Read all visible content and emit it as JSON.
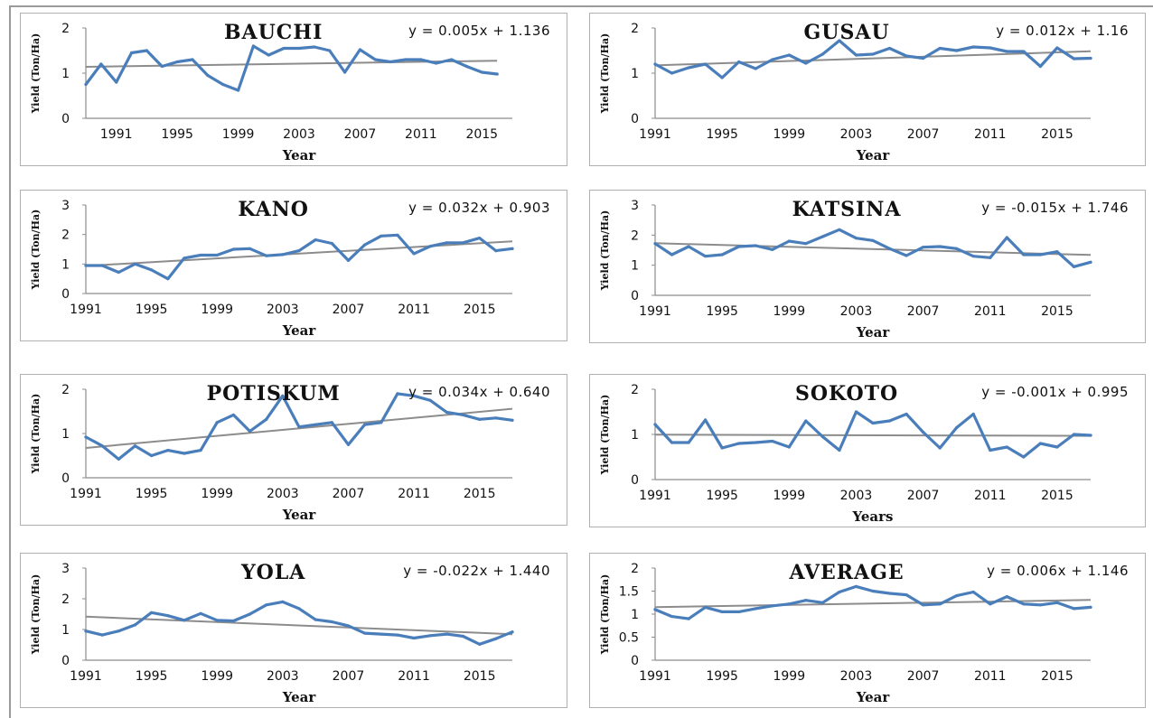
{
  "chart_data": [
    {
      "type": "line",
      "title": "BAUCHI",
      "equation": "y = 0.005x + 1.136",
      "xlabel": "Year",
      "ylabel": "Yield (Ton/Ha)",
      "x_tick_labels": [
        "1991",
        "1995",
        "1999",
        "2003",
        "2007",
        "2011",
        "2015"
      ],
      "y_ticks": [
        0,
        1,
        2
      ],
      "ylim": [
        0,
        2
      ],
      "x_start": 1989,
      "x_end": 2017,
      "series": [
        {
          "x": [
            1989,
            1990,
            1991,
            1992,
            1993,
            1994,
            1995,
            1996,
            1997,
            1998,
            1999,
            2000,
            2001,
            2002,
            2003,
            2004,
            2005,
            2006,
            2007,
            2008,
            2009,
            2010,
            2011,
            2012,
            2013,
            2014,
            2015,
            2016
          ],
          "values": [
            0.75,
            1.2,
            0.8,
            1.45,
            1.5,
            1.15,
            1.25,
            1.3,
            0.95,
            0.75,
            0.62,
            1.6,
            1.4,
            1.55,
            1.55,
            1.58,
            1.5,
            1.02,
            1.52,
            1.3,
            1.25,
            1.3,
            1.3,
            1.22,
            1.3,
            1.15,
            1.02,
            0.98
          ]
        }
      ],
      "trendline": {
        "slope": 0.005,
        "intercept": 1.136
      }
    },
    {
      "type": "line",
      "title": "GUSAU",
      "equation": "y = 0.012x + 1.16",
      "xlabel": "Year",
      "ylabel": "Yield (Ton/Ha)",
      "x_tick_labels": [
        "1991",
        "1995",
        "1999",
        "2003",
        "2007",
        "2011",
        "2015"
      ],
      "y_ticks": [
        0,
        1,
        2
      ],
      "ylim": [
        0,
        2
      ],
      "x_start": 1991,
      "x_end": 2017,
      "series": [
        {
          "x": [
            1991,
            1992,
            1993,
            1994,
            1995,
            1996,
            1997,
            1998,
            1999,
            2000,
            2001,
            2002,
            2003,
            2004,
            2005,
            2006,
            2007,
            2008,
            2009,
            2010,
            2011,
            2012,
            2013,
            2014,
            2015,
            2016,
            2017
          ],
          "values": [
            1.2,
            1.0,
            1.12,
            1.2,
            0.9,
            1.25,
            1.1,
            1.3,
            1.4,
            1.22,
            1.42,
            1.72,
            1.4,
            1.42,
            1.55,
            1.38,
            1.33,
            1.55,
            1.5,
            1.58,
            1.56,
            1.48,
            1.48,
            1.15,
            1.56,
            1.32,
            1.33
          ]
        }
      ],
      "trendline": {
        "slope": 0.012,
        "intercept": 1.16
      }
    },
    {
      "type": "line",
      "title": "KANO",
      "equation": "y = 0.032x + 0.903",
      "xlabel": "Year",
      "ylabel": "Yield (Ton/Ha)",
      "x_tick_labels": [
        "1991",
        "1995",
        "1999",
        "2003",
        "2007",
        "2011",
        "2015"
      ],
      "y_ticks": [
        0,
        1,
        2,
        3
      ],
      "ylim": [
        0,
        3
      ],
      "x_start": 1991,
      "x_end": 2017,
      "series": [
        {
          "x": [
            1991,
            1992,
            1993,
            1994,
            1995,
            1996,
            1997,
            1998,
            1999,
            2000,
            2001,
            2002,
            2003,
            2004,
            2005,
            2006,
            2007,
            2008,
            2009,
            2010,
            2011,
            2012,
            2013,
            2014,
            2015,
            2016,
            2017
          ],
          "values": [
            0.95,
            0.95,
            0.72,
            1.0,
            0.8,
            0.5,
            1.2,
            1.3,
            1.3,
            1.5,
            1.52,
            1.28,
            1.32,
            1.45,
            1.82,
            1.7,
            1.12,
            1.65,
            1.95,
            1.98,
            1.35,
            1.6,
            1.72,
            1.72,
            1.88,
            1.45,
            1.52
          ]
        }
      ],
      "trendline": {
        "slope": 0.032,
        "intercept": 0.903
      }
    },
    {
      "type": "line",
      "title": "KATSINA",
      "equation": "y = -0.015x + 1.746",
      "xlabel": "Year",
      "ylabel": "Yield (Ton/Ha)",
      "x_tick_labels": [
        "1991",
        "1995",
        "1999",
        "2003",
        "2007",
        "2011",
        "2015"
      ],
      "y_ticks": [
        0,
        1,
        2,
        3
      ],
      "ylim": [
        0,
        3
      ],
      "x_start": 1991,
      "x_end": 2017,
      "series": [
        {
          "x": [
            1991,
            1992,
            1993,
            1994,
            1995,
            1996,
            1997,
            1998,
            1999,
            2000,
            2001,
            2002,
            2003,
            2004,
            2005,
            2006,
            2007,
            2008,
            2009,
            2010,
            2011,
            2012,
            2013,
            2014,
            2015,
            2016,
            2017
          ],
          "values": [
            1.72,
            1.35,
            1.62,
            1.3,
            1.35,
            1.62,
            1.65,
            1.52,
            1.8,
            1.72,
            1.95,
            2.18,
            1.9,
            1.82,
            1.55,
            1.32,
            1.6,
            1.62,
            1.55,
            1.3,
            1.25,
            1.92,
            1.35,
            1.35,
            1.45,
            0.95,
            1.1
          ]
        }
      ],
      "trendline": {
        "slope": -0.015,
        "intercept": 1.746
      }
    },
    {
      "type": "line",
      "title": "POTISKUM",
      "equation": "y = 0.034x + 0.640",
      "xlabel": "Year",
      "ylabel": "Yield (Ton/Ha)",
      "x_tick_labels": [
        "1991",
        "1995",
        "1999",
        "2003",
        "2007",
        "2011",
        "2015"
      ],
      "y_ticks": [
        0,
        1,
        2
      ],
      "ylim": [
        0,
        2
      ],
      "x_start": 1991,
      "x_end": 2017,
      "series": [
        {
          "x": [
            1991,
            1992,
            1993,
            1994,
            1995,
            1996,
            1997,
            1998,
            1999,
            2000,
            2001,
            2002,
            2003,
            2004,
            2005,
            2006,
            2007,
            2008,
            2009,
            2010,
            2011,
            2012,
            2013,
            2014,
            2015,
            2016,
            2017
          ],
          "values": [
            0.92,
            0.72,
            0.42,
            0.72,
            0.5,
            0.62,
            0.55,
            0.62,
            1.25,
            1.42,
            1.05,
            1.32,
            1.85,
            1.15,
            1.2,
            1.25,
            0.75,
            1.2,
            1.25,
            1.9,
            1.85,
            1.75,
            1.48,
            1.42,
            1.32,
            1.35,
            1.3
          ]
        }
      ],
      "trendline": {
        "slope": 0.034,
        "intercept": 0.64
      }
    },
    {
      "type": "line",
      "title": "SOKOTO",
      "equation": "y = -0.001x + 0.995",
      "xlabel": "Years",
      "ylabel": "Yield (Ton/Ha)",
      "x_tick_labels": [
        "1991",
        "1995",
        "1999",
        "2003",
        "2007",
        "2011",
        "2015"
      ],
      "y_ticks": [
        0,
        1,
        2
      ],
      "ylim": [
        0,
        2
      ],
      "x_start": 1991,
      "x_end": 2017,
      "series": [
        {
          "x": [
            1991,
            1992,
            1993,
            1994,
            1995,
            1996,
            1997,
            1998,
            1999,
            2000,
            2001,
            2002,
            2003,
            2004,
            2005,
            2006,
            2007,
            2008,
            2009,
            2010,
            2011,
            2012,
            2013,
            2014,
            2015,
            2016,
            2017
          ],
          "values": [
            1.22,
            0.82,
            0.82,
            1.32,
            0.7,
            0.8,
            0.82,
            0.85,
            0.72,
            1.3,
            0.95,
            0.65,
            1.5,
            1.25,
            1.3,
            1.45,
            1.05,
            0.7,
            1.15,
            1.45,
            0.65,
            0.72,
            0.5,
            0.8,
            0.72,
            1.0,
            0.98
          ]
        }
      ],
      "trendline": {
        "slope": -0.001,
        "intercept": 0.995
      }
    },
    {
      "type": "line",
      "title": "YOLA",
      "equation": "y = -0.022x + 1.440",
      "xlabel": "Year",
      "ylabel": "Yield (Ton/Ha)",
      "x_tick_labels": [
        "1991",
        "1995",
        "1999",
        "2003",
        "2007",
        "2011",
        "2015"
      ],
      "y_ticks": [
        0,
        1,
        2,
        3
      ],
      "ylim": [
        0,
        3
      ],
      "x_start": 1991,
      "x_end": 2017,
      "series": [
        {
          "x": [
            1991,
            1992,
            1993,
            1994,
            1995,
            1996,
            1997,
            1998,
            1999,
            2000,
            2001,
            2002,
            2003,
            2004,
            2005,
            2006,
            2007,
            2008,
            2009,
            2010,
            2011,
            2012,
            2013,
            2014,
            2015,
            2016,
            2017
          ],
          "values": [
            0.95,
            0.82,
            0.95,
            1.15,
            1.55,
            1.45,
            1.3,
            1.52,
            1.3,
            1.28,
            1.5,
            1.8,
            1.9,
            1.68,
            1.32,
            1.25,
            1.12,
            0.88,
            0.85,
            0.82,
            0.72,
            0.8,
            0.85,
            0.78,
            0.52,
            0.7,
            0.92
          ]
        }
      ],
      "trendline": {
        "slope": -0.022,
        "intercept": 1.44
      }
    },
    {
      "type": "line",
      "title": "AVERAGE",
      "equation": "y = 0.006x + 1.146",
      "xlabel": "Year",
      "ylabel": "Yield (Ton/Ha)",
      "x_tick_labels": [
        "1991",
        "1995",
        "1999",
        "2003",
        "2007",
        "2011",
        "2015"
      ],
      "y_ticks": [
        0,
        0.5,
        1,
        1.5,
        2
      ],
      "ylim": [
        0,
        2
      ],
      "x_start": 1991,
      "x_end": 2017,
      "series": [
        {
          "x": [
            1991,
            1992,
            1993,
            1994,
            1995,
            1996,
            1997,
            1998,
            1999,
            2000,
            2001,
            2002,
            2003,
            2004,
            2005,
            2006,
            2007,
            2008,
            2009,
            2010,
            2011,
            2012,
            2013,
            2014,
            2015,
            2016,
            2017
          ],
          "values": [
            1.1,
            0.95,
            0.9,
            1.15,
            1.05,
            1.05,
            1.12,
            1.18,
            1.22,
            1.3,
            1.25,
            1.48,
            1.6,
            1.5,
            1.45,
            1.42,
            1.2,
            1.22,
            1.4,
            1.48,
            1.22,
            1.38,
            1.22,
            1.2,
            1.25,
            1.12,
            1.15
          ]
        }
      ],
      "trendline": {
        "slope": 0.006,
        "intercept": 1.146
      }
    }
  ],
  "colors": {
    "series_line": "#4a7ebb",
    "trend_line": "#8c8c8c",
    "axis": "#8c8c8c",
    "text": "#111111"
  }
}
